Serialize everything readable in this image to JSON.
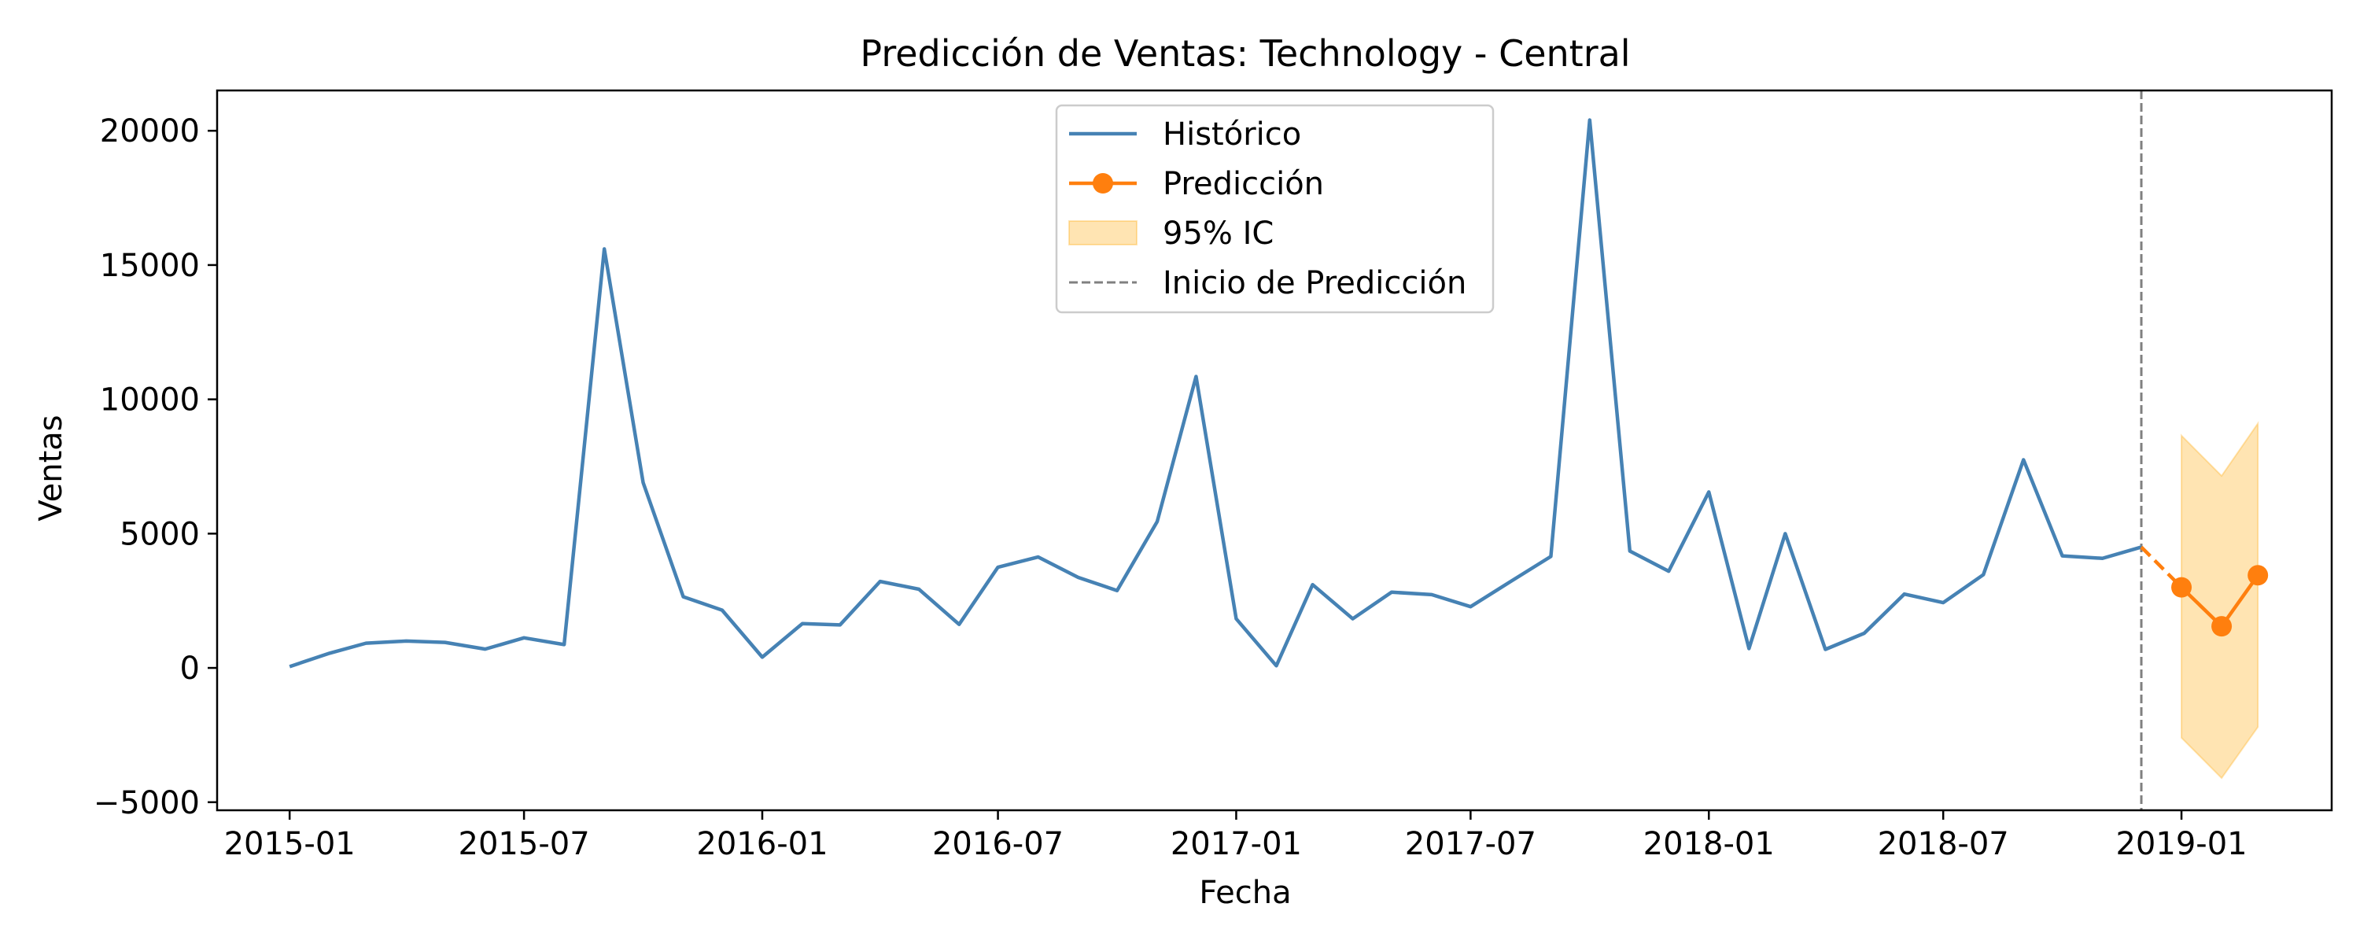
{
  "chart_data": {
    "type": "line",
    "title": "Predicción de Ventas: Technology - Central",
    "xlabel": "Fecha",
    "ylabel": "Ventas",
    "xlim": [
      "2014-11-06",
      "2019-04-27"
    ],
    "ylim": [
      -5300,
      21500
    ],
    "x_ticks": [
      "2015-01",
      "2015-07",
      "2016-01",
      "2016-07",
      "2017-01",
      "2017-07",
      "2018-01",
      "2018-07",
      "2019-01"
    ],
    "y_ticks": [
      -5000,
      0,
      5000,
      10000,
      15000,
      20000
    ],
    "y_tick_labels": [
      "−5000",
      "0",
      "5000",
      "10000",
      "15000",
      "20000"
    ],
    "grid": false,
    "legend_position": "top-center",
    "series": [
      {
        "name": "Histórico",
        "kind": "line",
        "color": "#4682b4",
        "x": [
          "2015-01-01",
          "2015-02-01",
          "2015-03-01",
          "2015-04-01",
          "2015-05-01",
          "2015-06-01",
          "2015-07-01",
          "2015-08-01",
          "2015-09-01",
          "2015-10-01",
          "2015-11-01",
          "2015-12-01",
          "2016-01-01",
          "2016-02-01",
          "2016-03-01",
          "2016-04-01",
          "2016-05-01",
          "2016-06-01",
          "2016-07-01",
          "2016-08-01",
          "2016-09-01",
          "2016-10-01",
          "2016-11-01",
          "2016-12-01",
          "2017-01-01",
          "2017-02-01",
          "2017-03-01",
          "2017-04-01",
          "2017-05-01",
          "2017-06-01",
          "2017-07-01",
          "2017-08-01",
          "2017-09-01",
          "2017-10-01",
          "2017-11-01",
          "2017-12-01",
          "2018-01-01",
          "2018-02-01",
          "2018-03-01",
          "2018-04-01",
          "2018-05-01",
          "2018-06-01",
          "2018-07-01",
          "2018-08-01",
          "2018-09-01",
          "2018-10-01",
          "2018-11-01",
          "2018-12-01"
        ],
        "y": [
          50,
          550,
          920,
          1000,
          950,
          700,
          1120,
          870,
          15600,
          6900,
          2650,
          2150,
          400,
          1650,
          1600,
          3220,
          2930,
          1620,
          3750,
          4130,
          3370,
          2880,
          5450,
          10850,
          1830,
          80,
          3100,
          1830,
          2820,
          2730,
          2280,
          3220,
          4150,
          20400,
          4350,
          3600,
          6550,
          720,
          5000,
          690,
          1290,
          2750,
          2430,
          3470,
          7750,
          4170,
          4080,
          4500
        ]
      },
      {
        "name": "Predicción",
        "kind": "line-marker",
        "color": "#ff7f0e",
        "x": [
          "2019-01-01",
          "2019-02-01",
          "2019-03-01"
        ],
        "y": [
          3000,
          1550,
          3450
        ]
      },
      {
        "name": "95% IC",
        "kind": "band",
        "color": "#ffa500",
        "x": [
          "2019-01-01",
          "2019-02-01",
          "2019-03-01"
        ],
        "lower": [
          -2600,
          -4100,
          -2200
        ],
        "upper": [
          8650,
          7150,
          9100
        ]
      }
    ],
    "prediction_start": {
      "name": "Inicio de Predicción",
      "x": "2018-12-01",
      "color": "#808080"
    }
  }
}
